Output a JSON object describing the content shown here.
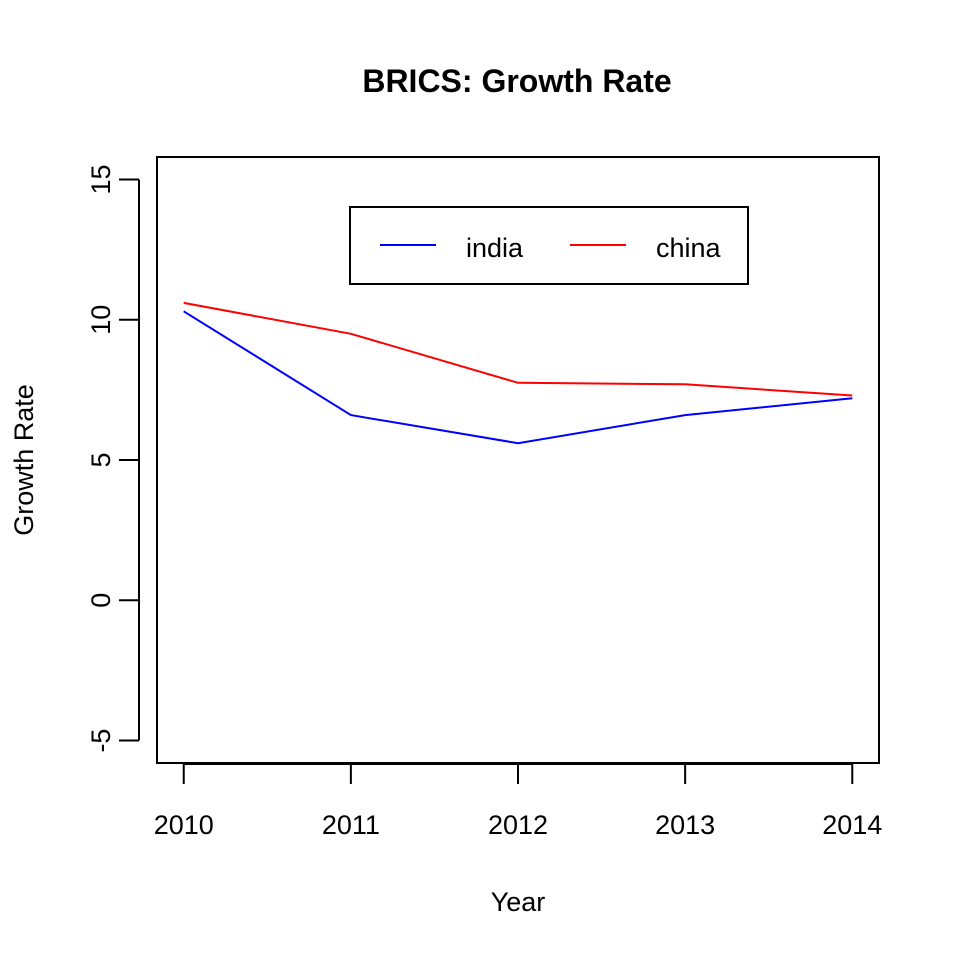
{
  "chart_data": {
    "type": "line",
    "title": "BRICS: Growth Rate",
    "xlabel": "Year",
    "ylabel": "Growth Rate",
    "x": [
      2010,
      2011,
      2012,
      2013,
      2014
    ],
    "xlim": [
      2009.84,
      2014.16
    ],
    "ylim": [
      -5.8,
      15.8
    ],
    "xticks": [
      "2010",
      "2011",
      "2012",
      "2013",
      "2014"
    ],
    "yticks": [
      "-5",
      "0",
      "5",
      "10",
      "15"
    ],
    "ytick_values": [
      -5,
      0,
      5,
      10,
      15
    ],
    "grid": false,
    "legend": {
      "placement": "top",
      "box": true,
      "orientation": "horizontal"
    },
    "series": [
      {
        "name": "india",
        "color": "#0000ff",
        "values": [
          10.3,
          6.6,
          5.6,
          6.6,
          7.2
        ]
      },
      {
        "name": "china",
        "color": "#ff0000",
        "values": [
          10.6,
          9.5,
          7.75,
          7.7,
          7.3
        ]
      }
    ]
  }
}
